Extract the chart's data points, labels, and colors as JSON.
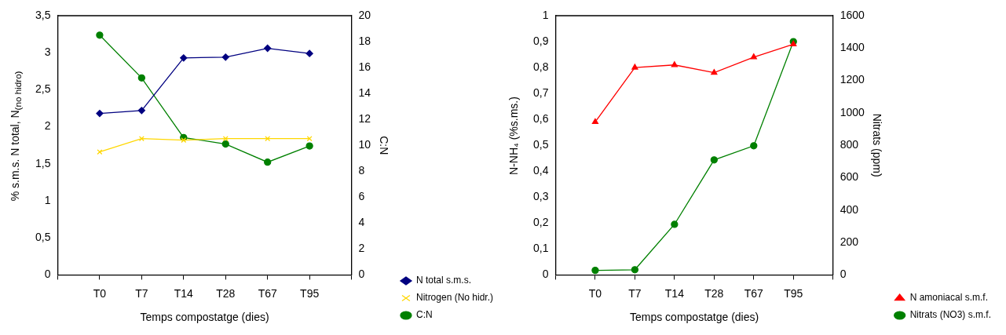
{
  "chart_data": [
    {
      "type": "line",
      "categories": [
        null,
        "T0",
        "T7",
        "T14",
        "T28",
        "T67",
        "T95",
        null
      ],
      "xlabel": "Temps compostatge (dies)",
      "ylabel": "% s.m.s. N total, N$_{(no hidro)}$",
      "y2label": "C:N",
      "ylim": [
        0,
        3.5
      ],
      "yticks": [
        0,
        {
          "value": 0.5,
          "label": "0,5"
        },
        1,
        {
          "value": 1.5,
          "label": "1,5"
        },
        2,
        {
          "value": 2.5,
          "label": "2,5"
        },
        3,
        {
          "value": 3.5,
          "label": "3,5"
        }
      ],
      "y2lim": [
        0,
        20
      ],
      "y2ticks": [
        0,
        2,
        4,
        6,
        8,
        10,
        12,
        14,
        16,
        18,
        20
      ],
      "legend": "bottom right",
      "grid": false,
      "series": [
        {
          "name": "N total s.m.s.",
          "color": "#000080",
          "marker": "diamond",
          "values": [
            null,
            2.18,
            2.22,
            2.93,
            2.94,
            3.06,
            2.99,
            null
          ]
        },
        {
          "name": "Nitrogen (No hidr.)",
          "color": "#ffd700",
          "marker": "cross",
          "values": [
            null,
            1.66,
            1.84,
            1.82,
            1.84,
            1.84,
            1.84,
            null
          ]
        },
        {
          "name": "C:N",
          "color": "#008000",
          "marker": "circle",
          "axis": "y2",
          "values": [
            null,
            18.5,
            15.2,
            10.6,
            10.1,
            8.7,
            9.95,
            null
          ]
        }
      ]
    },
    {
      "type": "line",
      "categories": [
        null,
        "T0",
        "T7",
        "T14",
        "T28",
        "T67",
        "T95",
        null
      ],
      "xlabel": "Temps compostatge (dies)",
      "ylabel": "N-NH₄ (%s.ms.)",
      "y2label": "Nitrats (ppm)",
      "ylim": [
        0,
        1
      ],
      "yticks": [
        0,
        {
          "value": 0.1,
          "label": "0,1"
        },
        {
          "value": 0.2,
          "label": "0,2"
        },
        {
          "value": 0.3,
          "label": "0,3"
        },
        {
          "value": 0.4,
          "label": "0,4"
        },
        {
          "value": 0.5,
          "label": "0,5"
        },
        {
          "value": 0.6,
          "label": "0,6"
        },
        {
          "value": 0.7,
          "label": "0,7"
        },
        {
          "value": 0.8,
          "label": "0,8"
        },
        {
          "value": 0.9,
          "label": "0,9"
        },
        1
      ],
      "y2lim": [
        0,
        1600
      ],
      "y2ticks": [
        0,
        200,
        400,
        600,
        800,
        1000,
        1200,
        1400,
        1600
      ],
      "legend": "bottom right",
      "grid": false,
      "series": [
        {
          "name": "N amoniacal s.m.f.",
          "color": "#ff0000",
          "marker": "triangle",
          "values": [
            null,
            0.59,
            0.8,
            0.81,
            0.78,
            0.84,
            0.89,
            null
          ]
        },
        {
          "name": "Nitrats (NO3) s.m.f.",
          "color": "#008000",
          "marker": "circle",
          "axis": "y2",
          "values": [
            null,
            28,
            32,
            312,
            710,
            797,
            1440,
            null
          ]
        }
      ]
    }
  ]
}
